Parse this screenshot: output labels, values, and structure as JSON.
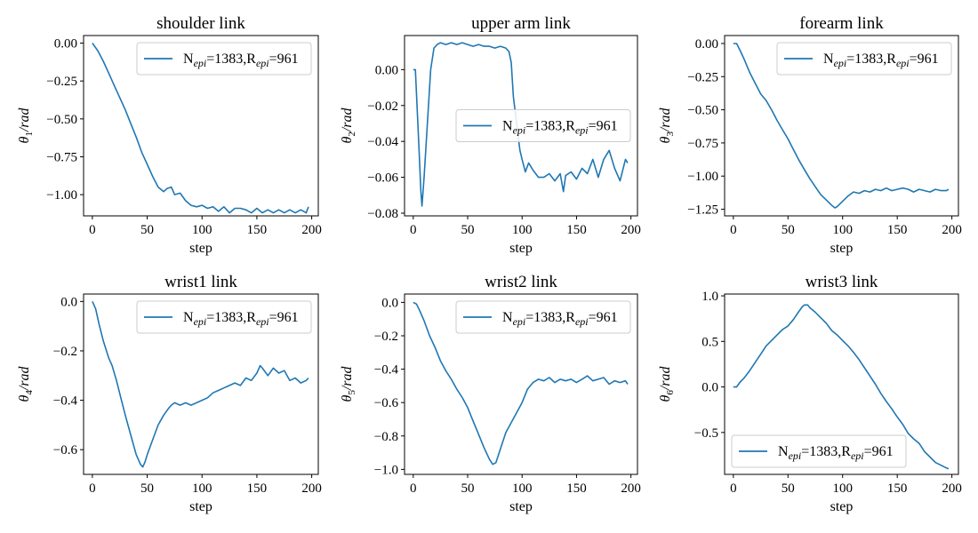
{
  "figure": {
    "line_color": "#1f77b4"
  },
  "chart_data": [
    {
      "type": "line",
      "title": "shoulder link",
      "xlabel": "step",
      "ylabel": "θ1/rad",
      "ylabel_symbol": "θ",
      "ylabel_sub": "1",
      "ylabel_unit": "/rad",
      "xlim": [
        -8,
        206
      ],
      "ylim": [
        -1.14,
        0.05
      ],
      "xticks": [
        0,
        50,
        100,
        150,
        200
      ],
      "xtick_labels": [
        "0",
        "50",
        "100",
        "150",
        "200"
      ],
      "yticks": [
        0.0,
        -0.25,
        -0.5,
        -0.75,
        -1.0
      ],
      "ytick_labels": [
        "0.00",
        "−0.25",
        "−0.50",
        "−0.75",
        "−1.00"
      ],
      "legend": {
        "placement": "upper-right",
        "label": "Nepi=1383,Repi=961",
        "parts": [
          "N",
          "epi",
          "=1383,R",
          "epi",
          "=961"
        ]
      },
      "series": [
        {
          "name": "Nepi=1383,Repi=961",
          "x": [
            0,
            5,
            10,
            15,
            20,
            25,
            30,
            35,
            40,
            45,
            50,
            55,
            60,
            65,
            68,
            72,
            75,
            80,
            85,
            90,
            95,
            100,
            105,
            110,
            115,
            120,
            125,
            130,
            135,
            140,
            145,
            150,
            155,
            160,
            165,
            170,
            175,
            180,
            185,
            190,
            195,
            197
          ],
          "y": [
            0.0,
            -0.05,
            -0.12,
            -0.2,
            -0.28,
            -0.36,
            -0.44,
            -0.53,
            -0.62,
            -0.72,
            -0.8,
            -0.88,
            -0.95,
            -0.98,
            -0.96,
            -0.95,
            -1.0,
            -0.99,
            -1.04,
            -1.07,
            -1.08,
            -1.07,
            -1.09,
            -1.08,
            -1.11,
            -1.08,
            -1.12,
            -1.09,
            -1.09,
            -1.1,
            -1.12,
            -1.09,
            -1.12,
            -1.1,
            -1.12,
            -1.1,
            -1.12,
            -1.1,
            -1.12,
            -1.1,
            -1.12,
            -1.08
          ]
        }
      ]
    },
    {
      "type": "line",
      "title": "upper arm link",
      "xlabel": "step",
      "ylabel": "θ2/rad",
      "ylabel_symbol": "θ",
      "ylabel_sub": "2",
      "ylabel_unit": "/rad",
      "xlim": [
        -8,
        206
      ],
      "ylim": [
        -0.0815,
        0.019
      ],
      "xticks": [
        0,
        50,
        100,
        150,
        200
      ],
      "xtick_labels": [
        "0",
        "50",
        "100",
        "150",
        "200"
      ],
      "yticks": [
        0.0,
        -0.02,
        -0.04,
        -0.06,
        -0.08
      ],
      "ytick_labels": [
        "0.00",
        "−0.02",
        "−0.04",
        "−0.06",
        "−0.08"
      ],
      "legend": {
        "placement": "center-right",
        "label": "Nepi=1383,Repi=961",
        "parts": [
          "N",
          "epi",
          "=1383,R",
          "epi",
          "=961"
        ]
      },
      "series": [
        {
          "name": "Nepi=1383,Repi=961",
          "x": [
            0,
            2,
            5,
            7,
            8,
            10,
            13,
            16,
            19,
            22,
            25,
            30,
            35,
            40,
            45,
            50,
            55,
            60,
            65,
            70,
            75,
            80,
            85,
            88,
            90,
            92,
            95,
            98,
            100,
            103,
            106,
            110,
            115,
            120,
            125,
            130,
            135,
            138,
            140,
            145,
            150,
            155,
            160,
            165,
            170,
            175,
            180,
            185,
            190,
            195,
            197
          ],
          "y": [
            0.0,
            0.0,
            -0.04,
            -0.068,
            -0.076,
            -0.06,
            -0.03,
            0.0,
            0.012,
            0.014,
            0.015,
            0.014,
            0.015,
            0.014,
            0.015,
            0.014,
            0.013,
            0.014,
            0.013,
            0.013,
            0.012,
            0.013,
            0.012,
            0.01,
            0.004,
            -0.015,
            -0.03,
            -0.045,
            -0.05,
            -0.057,
            -0.052,
            -0.056,
            -0.06,
            -0.06,
            -0.058,
            -0.062,
            -0.058,
            -0.068,
            -0.059,
            -0.057,
            -0.061,
            -0.055,
            -0.058,
            -0.05,
            -0.06,
            -0.05,
            -0.045,
            -0.055,
            -0.062,
            -0.05,
            -0.052
          ]
        }
      ]
    },
    {
      "type": "line",
      "title": "forearm link",
      "xlabel": "step",
      "ylabel": "θ3/rad",
      "ylabel_symbol": "θ",
      "ylabel_sub": "3",
      "ylabel_unit": "/rad",
      "xlim": [
        -8,
        206
      ],
      "ylim": [
        -1.3,
        0.06
      ],
      "xticks": [
        0,
        50,
        100,
        150,
        200
      ],
      "xtick_labels": [
        "0",
        "50",
        "100",
        "150",
        "200"
      ],
      "yticks": [
        0.0,
        -0.25,
        -0.5,
        -0.75,
        -1.0,
        -1.25
      ],
      "ytick_labels": [
        "0.00",
        "−0.25",
        "−0.50",
        "−0.75",
        "−1.00",
        "−1.25"
      ],
      "legend": {
        "placement": "upper-right",
        "label": "Nepi=1383,Repi=961",
        "parts": [
          "N",
          "epi",
          "=1383,R",
          "epi",
          "=961"
        ]
      },
      "series": [
        {
          "name": "Nepi=1383,Repi=961",
          "x": [
            0,
            3,
            6,
            10,
            15,
            20,
            25,
            30,
            35,
            40,
            45,
            50,
            55,
            60,
            65,
            70,
            75,
            80,
            85,
            90,
            93,
            95,
            100,
            105,
            110,
            115,
            120,
            125,
            130,
            135,
            140,
            145,
            150,
            155,
            160,
            165,
            170,
            175,
            180,
            185,
            190,
            195,
            197
          ],
          "y": [
            0.0,
            0.0,
            -0.05,
            -0.12,
            -0.22,
            -0.3,
            -0.38,
            -0.43,
            -0.5,
            -0.58,
            -0.65,
            -0.72,
            -0.8,
            -0.88,
            -0.95,
            -1.02,
            -1.08,
            -1.14,
            -1.18,
            -1.22,
            -1.24,
            -1.23,
            -1.19,
            -1.15,
            -1.12,
            -1.13,
            -1.11,
            -1.12,
            -1.1,
            -1.11,
            -1.09,
            -1.11,
            -1.1,
            -1.09,
            -1.1,
            -1.12,
            -1.1,
            -1.11,
            -1.12,
            -1.1,
            -1.11,
            -1.11,
            -1.1
          ]
        }
      ]
    },
    {
      "type": "line",
      "title": "wrist1 link",
      "xlabel": "step",
      "ylabel": "θ4/rad",
      "ylabel_symbol": "θ",
      "ylabel_sub": "4",
      "ylabel_unit": "/rad",
      "xlim": [
        -8,
        206
      ],
      "ylim": [
        -0.7,
        0.03
      ],
      "xticks": [
        0,
        50,
        100,
        150,
        200
      ],
      "xtick_labels": [
        "0",
        "50",
        "100",
        "150",
        "200"
      ],
      "yticks": [
        0.0,
        -0.2,
        -0.4,
        -0.6
      ],
      "ytick_labels": [
        "0.0",
        "−0.2",
        "−0.4",
        "−0.6"
      ],
      "legend": {
        "placement": "upper-right",
        "label": "Nepi=1383,Repi=961",
        "parts": [
          "N",
          "epi",
          "=1383,R",
          "epi",
          "=961"
        ]
      },
      "series": [
        {
          "name": "Nepi=1383,Repi=961",
          "x": [
            0,
            3,
            6,
            10,
            15,
            18,
            22,
            26,
            30,
            35,
            40,
            44,
            46,
            48,
            50,
            55,
            60,
            65,
            70,
            72,
            75,
            80,
            85,
            90,
            95,
            100,
            105,
            110,
            115,
            120,
            125,
            130,
            135,
            140,
            145,
            150,
            153,
            155,
            160,
            165,
            170,
            175,
            180,
            185,
            190,
            195,
            197
          ],
          "y": [
            0.0,
            -0.03,
            -0.09,
            -0.16,
            -0.23,
            -0.26,
            -0.32,
            -0.39,
            -0.46,
            -0.54,
            -0.62,
            -0.66,
            -0.67,
            -0.65,
            -0.62,
            -0.56,
            -0.5,
            -0.46,
            -0.43,
            -0.42,
            -0.41,
            -0.42,
            -0.41,
            -0.42,
            -0.41,
            -0.4,
            -0.39,
            -0.37,
            -0.36,
            -0.35,
            -0.34,
            -0.33,
            -0.34,
            -0.31,
            -0.32,
            -0.29,
            -0.26,
            -0.27,
            -0.3,
            -0.27,
            -0.29,
            -0.28,
            -0.32,
            -0.31,
            -0.33,
            -0.32,
            -0.31
          ]
        }
      ]
    },
    {
      "type": "line",
      "title": "wrist2 link",
      "xlabel": "step",
      "ylabel": "θ5/rad",
      "ylabel_symbol": "θ",
      "ylabel_sub": "5",
      "ylabel_unit": "/rad",
      "xlim": [
        -8,
        206
      ],
      "ylim": [
        -1.03,
        0.05
      ],
      "xticks": [
        0,
        50,
        100,
        150,
        200
      ],
      "xtick_labels": [
        "0",
        "50",
        "100",
        "150",
        "200"
      ],
      "yticks": [
        0.0,
        -0.2,
        -0.4,
        -0.6,
        -0.8,
        -1.0
      ],
      "ytick_labels": [
        "0.0",
        "−0.2",
        "−0.4",
        "−0.6",
        "−0.8",
        "−1.0"
      ],
      "legend": {
        "placement": "upper-right",
        "label": "Nepi=1383,Repi=961",
        "parts": [
          "N",
          "epi",
          "=1383,R",
          "epi",
          "=961"
        ]
      },
      "series": [
        {
          "name": "Nepi=1383,Repi=961",
          "x": [
            0,
            3,
            6,
            10,
            15,
            20,
            25,
            30,
            35,
            40,
            45,
            50,
            55,
            60,
            65,
            70,
            73,
            76,
            80,
            85,
            90,
            95,
            100,
            105,
            110,
            115,
            120,
            125,
            130,
            135,
            140,
            145,
            150,
            155,
            160,
            165,
            170,
            175,
            180,
            185,
            190,
            195,
            197
          ],
          "y": [
            0.0,
            -0.01,
            -0.05,
            -0.11,
            -0.2,
            -0.27,
            -0.35,
            -0.41,
            -0.46,
            -0.52,
            -0.57,
            -0.63,
            -0.71,
            -0.79,
            -0.87,
            -0.94,
            -0.97,
            -0.96,
            -0.88,
            -0.78,
            -0.72,
            -0.66,
            -0.6,
            -0.52,
            -0.48,
            -0.46,
            -0.47,
            -0.45,
            -0.48,
            -0.46,
            -0.47,
            -0.46,
            -0.48,
            -0.46,
            -0.44,
            -0.47,
            -0.46,
            -0.45,
            -0.49,
            -0.47,
            -0.48,
            -0.47,
            -0.49
          ]
        }
      ]
    },
    {
      "type": "line",
      "title": "wrist3 link",
      "xlabel": "step",
      "ylabel": "θ6/rad",
      "ylabel_symbol": "θ",
      "ylabel_sub": "6",
      "ylabel_unit": "/rad",
      "xlim": [
        -8,
        206
      ],
      "ylim": [
        -0.96,
        1.02
      ],
      "xticks": [
        0,
        50,
        100,
        150,
        200
      ],
      "xtick_labels": [
        "0",
        "50",
        "100",
        "150",
        "200"
      ],
      "yticks": [
        1.0,
        0.5,
        0.0,
        -0.5
      ],
      "ytick_labels": [
        "1.0",
        "0.5",
        "0.0",
        "−0.5"
      ],
      "legend": {
        "placement": "lower-left",
        "label": "Nepi=1383,Repi=961",
        "parts": [
          "N",
          "epi",
          "=1383,R",
          "epi",
          "=961"
        ]
      },
      "series": [
        {
          "name": "Nepi=1383,Repi=961",
          "x": [
            0,
            3,
            6,
            10,
            15,
            20,
            25,
            30,
            35,
            40,
            45,
            50,
            55,
            60,
            63,
            65,
            68,
            70,
            75,
            80,
            85,
            90,
            95,
            100,
            105,
            110,
            115,
            120,
            125,
            130,
            135,
            140,
            145,
            150,
            155,
            160,
            165,
            170,
            175,
            180,
            185,
            190,
            195,
            197
          ],
          "y": [
            0.0,
            0.0,
            0.05,
            0.1,
            0.18,
            0.27,
            0.36,
            0.45,
            0.51,
            0.57,
            0.63,
            0.67,
            0.74,
            0.83,
            0.88,
            0.9,
            0.9,
            0.87,
            0.82,
            0.76,
            0.7,
            0.62,
            0.57,
            0.51,
            0.45,
            0.38,
            0.3,
            0.21,
            0.12,
            0.03,
            -0.07,
            -0.16,
            -0.24,
            -0.33,
            -0.41,
            -0.51,
            -0.57,
            -0.62,
            -0.71,
            -0.77,
            -0.83,
            -0.86,
            -0.89,
            -0.9
          ]
        }
      ]
    }
  ]
}
